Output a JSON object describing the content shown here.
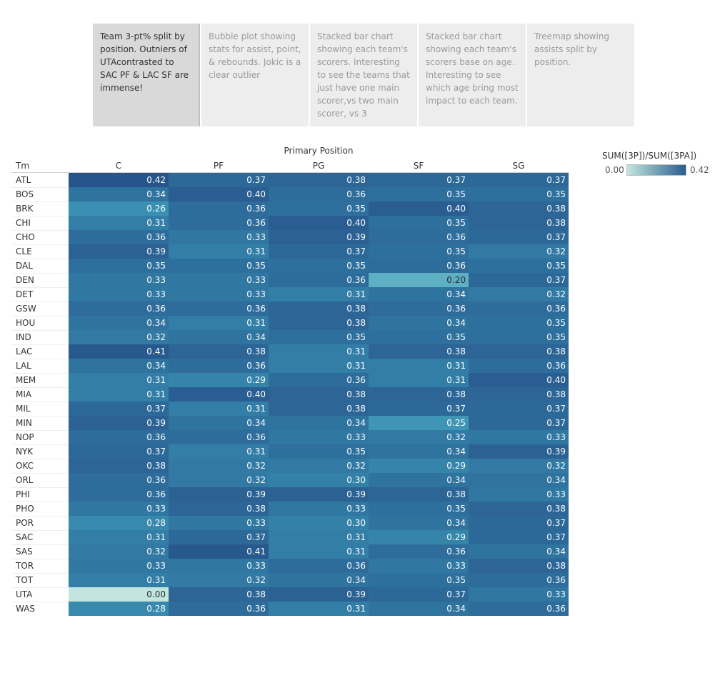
{
  "story": {
    "tabs": [
      {
        "label": "Team 3-pt% split by position. Outniers of UTAcontrasted to SAC PF & LAC SF are immense!",
        "active": true
      },
      {
        "label": "Bubble plot showing stats for assist, point, & rebounds. Jokic is a clear outlier",
        "active": false
      },
      {
        "label": "Stacked bar chart showing each team's scorers. Interesting to see the teams that just have one main scorer,vs two main scorer, vs 3",
        "active": false
      },
      {
        "label": "Stacked bar chart showing each team's scorers base on age. Interesting to see which age bring most impact to each team.",
        "active": false
      },
      {
        "label": "Treemap showing assists split by position.",
        "active": false
      }
    ]
  },
  "chart_data": {
    "type": "heatmap",
    "column_axis_title": "Primary Position",
    "row_axis_title": "Tm",
    "columns": [
      "C",
      "PF",
      "PG",
      "SF",
      "SG"
    ],
    "rows": [
      "ATL",
      "BOS",
      "BRK",
      "CHI",
      "CHO",
      "CLE",
      "DAL",
      "DEN",
      "DET",
      "GSW",
      "HOU",
      "IND",
      "LAC",
      "LAL",
      "MEM",
      "MIA",
      "MIL",
      "MIN",
      "NOP",
      "NYK",
      "OKC",
      "ORL",
      "PHI",
      "PHO",
      "POR",
      "SAC",
      "SAS",
      "TOR",
      "TOT",
      "UTA",
      "WAS"
    ],
    "values": [
      [
        0.42,
        0.37,
        0.38,
        0.37,
        0.37
      ],
      [
        0.34,
        0.4,
        0.36,
        0.35,
        0.35
      ],
      [
        0.26,
        0.36,
        0.35,
        0.4,
        0.38
      ],
      [
        0.31,
        0.36,
        0.4,
        0.35,
        0.38
      ],
      [
        0.36,
        0.33,
        0.39,
        0.36,
        0.37
      ],
      [
        0.39,
        0.31,
        0.37,
        0.35,
        0.32
      ],
      [
        0.35,
        0.35,
        0.35,
        0.36,
        0.35
      ],
      [
        0.33,
        0.33,
        0.36,
        0.2,
        0.37
      ],
      [
        0.33,
        0.33,
        0.31,
        0.34,
        0.32
      ],
      [
        0.36,
        0.36,
        0.38,
        0.36,
        0.36
      ],
      [
        0.34,
        0.31,
        0.38,
        0.34,
        0.35
      ],
      [
        0.32,
        0.34,
        0.35,
        0.35,
        0.35
      ],
      [
        0.41,
        0.38,
        0.31,
        0.38,
        0.38
      ],
      [
        0.34,
        0.36,
        0.31,
        0.31,
        0.36
      ],
      [
        0.31,
        0.29,
        0.36,
        0.31,
        0.4
      ],
      [
        0.31,
        0.4,
        0.38,
        0.38,
        0.38
      ],
      [
        0.37,
        0.31,
        0.38,
        0.37,
        0.37
      ],
      [
        0.39,
        0.34,
        0.34,
        0.25,
        0.37
      ],
      [
        0.36,
        0.36,
        0.33,
        0.32,
        0.33
      ],
      [
        0.37,
        0.31,
        0.35,
        0.34,
        0.39
      ],
      [
        0.38,
        0.32,
        0.32,
        0.29,
        0.32
      ],
      [
        0.36,
        0.32,
        0.3,
        0.34,
        0.34
      ],
      [
        0.36,
        0.39,
        0.39,
        0.38,
        0.33
      ],
      [
        0.33,
        0.38,
        0.33,
        0.35,
        0.38
      ],
      [
        0.28,
        0.33,
        0.3,
        0.34,
        0.37
      ],
      [
        0.31,
        0.37,
        0.31,
        0.29,
        0.37
      ],
      [
        0.32,
        0.41,
        0.31,
        0.36,
        0.34
      ],
      [
        0.33,
        0.33,
        0.36,
        0.33,
        0.38
      ],
      [
        0.31,
        0.32,
        0.34,
        0.35,
        0.36
      ],
      [
        0.0,
        0.38,
        0.39,
        0.37,
        0.33
      ],
      [
        0.28,
        0.36,
        0.31,
        0.34,
        0.36
      ]
    ],
    "legend": {
      "title": "SUM([3P])/SUM([3PA])",
      "min": 0.0,
      "max": 0.42,
      "min_label": "0.00",
      "max_label": "0.42",
      "color_low": "#c2e6df",
      "color_high": "#2a5d8f",
      "placement": "top-right"
    },
    "grid": false
  }
}
